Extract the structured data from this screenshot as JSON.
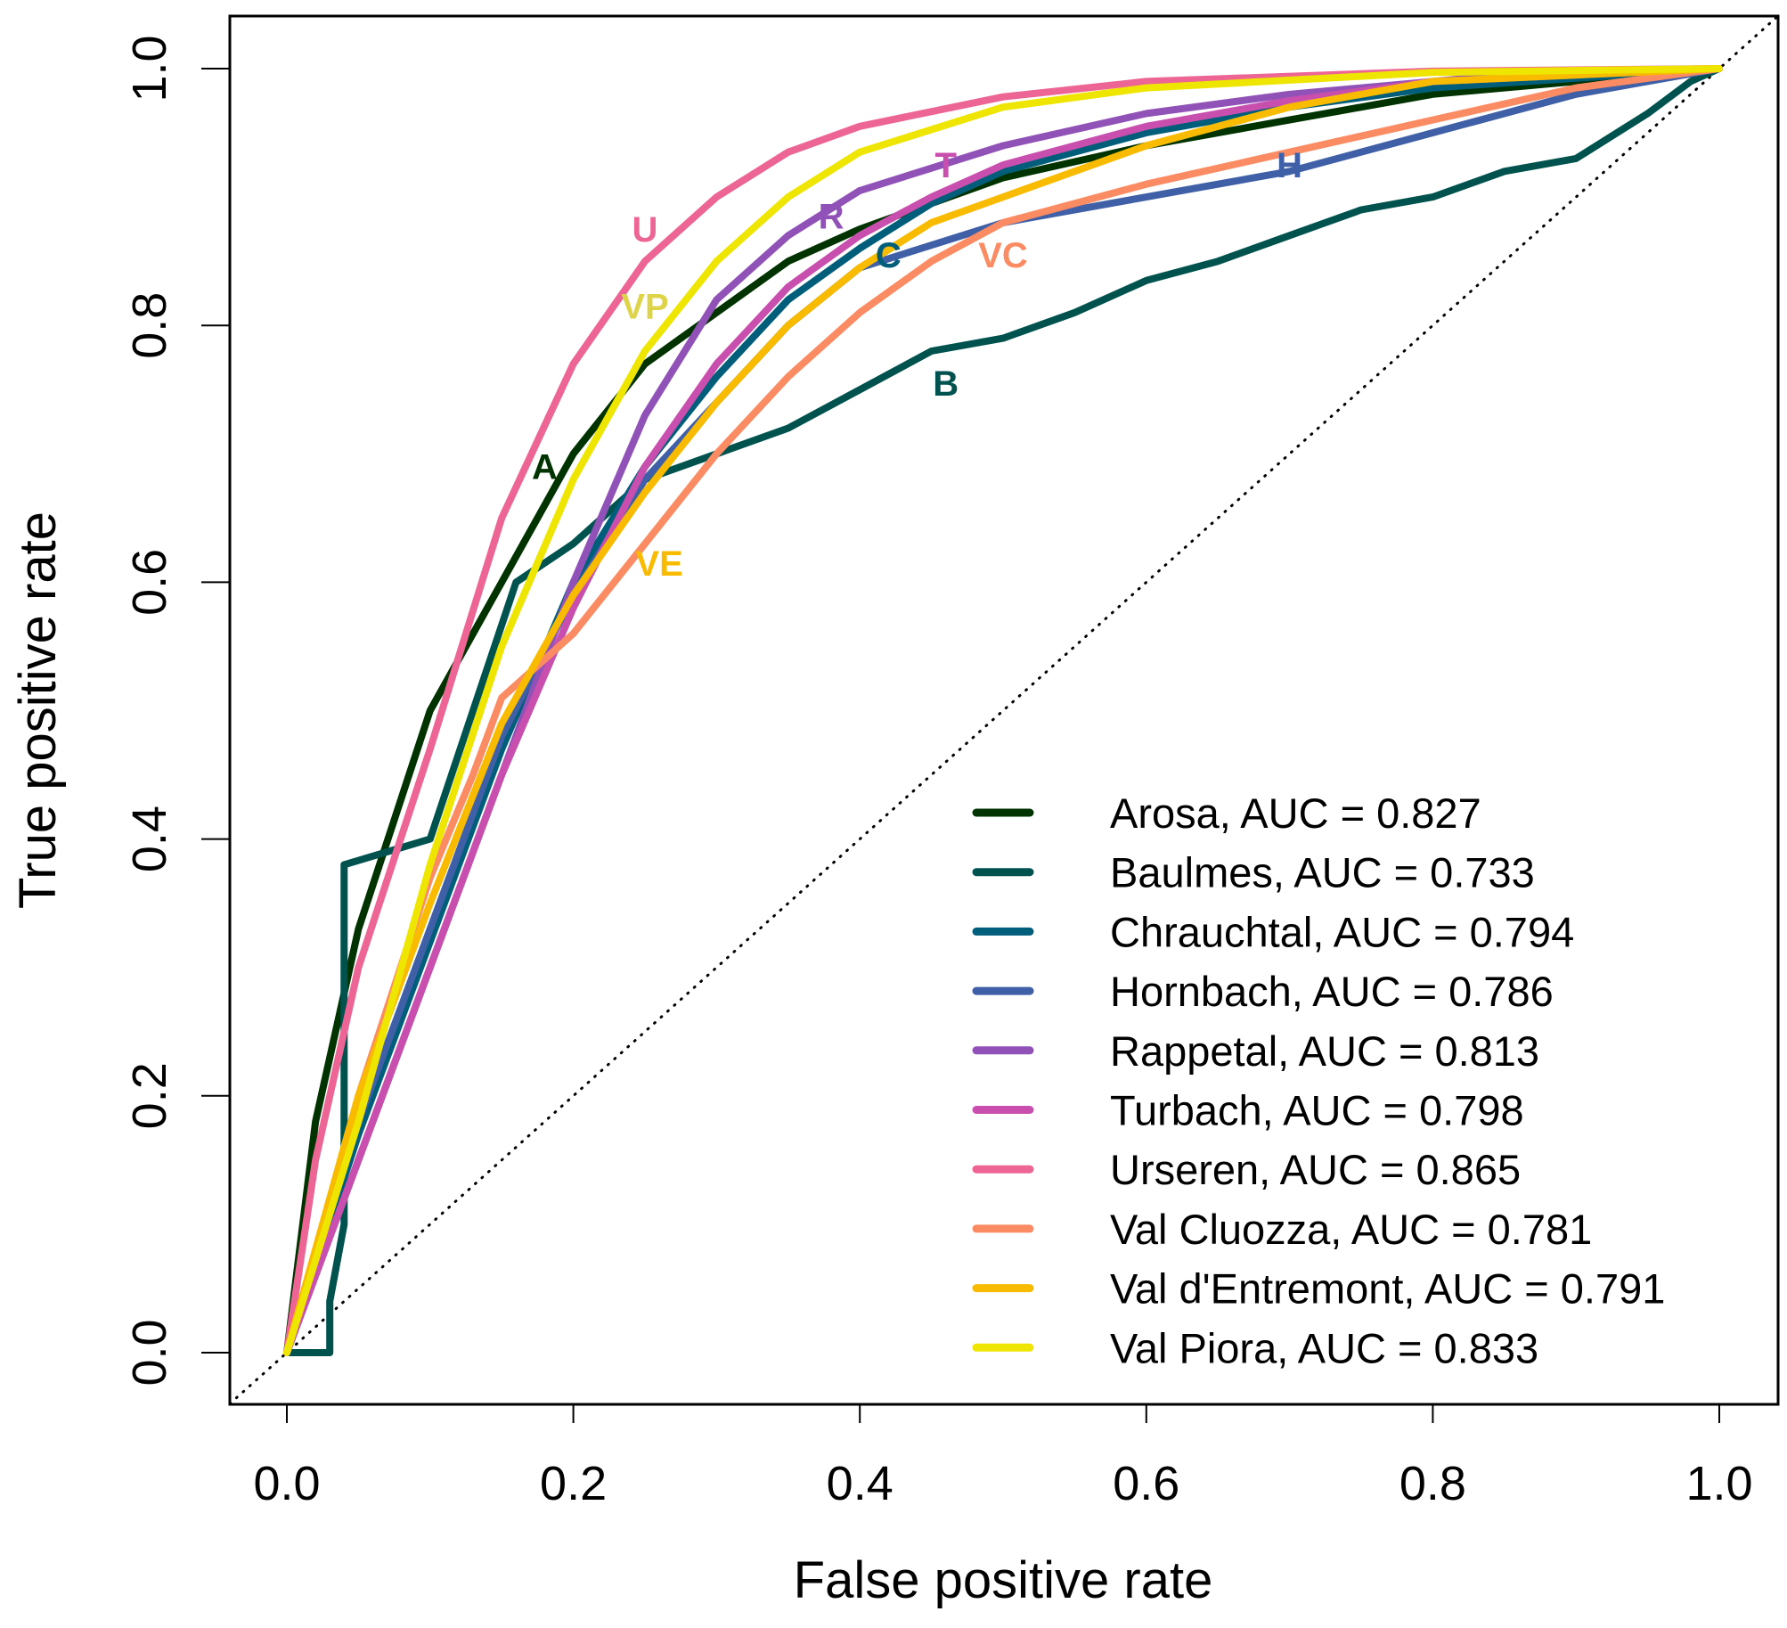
{
  "chart_data": {
    "type": "line",
    "title": "",
    "xlabel": "False positive rate",
    "ylabel": "True positive rate",
    "xlim": [
      0,
      1
    ],
    "ylim": [
      0,
      1
    ],
    "xticks": [
      0.0,
      0.2,
      0.4,
      0.6,
      0.8,
      1.0
    ],
    "xtick_labels": [
      "0.0",
      "0.2",
      "0.4",
      "0.6",
      "0.8",
      "1.0"
    ],
    "yticks": [
      0.0,
      0.2,
      0.4,
      0.6,
      0.8,
      1.0
    ],
    "ytick_labels": [
      "0.0",
      "0.2",
      "0.4",
      "0.6",
      "0.8",
      "1.0"
    ],
    "grid": false,
    "legend_position": "bottom-right",
    "reference_line": {
      "name": "chance",
      "style": "dotted",
      "color": "#000000",
      "x": [
        0,
        1
      ],
      "y": [
        0,
        1
      ]
    },
    "series": [
      {
        "name": "Arosa",
        "legend": "Arosa, AUC = 0.827",
        "auc": 0.827,
        "abbr": "A",
        "color": "#003300",
        "label_at": [
          0.18,
          0.69
        ],
        "x": [
          0,
          0.02,
          0.05,
          0.1,
          0.15,
          0.2,
          0.25,
          0.3,
          0.35,
          0.4,
          0.5,
          0.6,
          0.7,
          0.8,
          0.9,
          1
        ],
        "y": [
          0,
          0.18,
          0.33,
          0.5,
          0.6,
          0.7,
          0.77,
          0.81,
          0.85,
          0.875,
          0.915,
          0.94,
          0.96,
          0.98,
          0.99,
          1
        ]
      },
      {
        "name": "Baulmes",
        "legend": "Baulmes, AUC = 0.733",
        "auc": 0.733,
        "abbr": "B",
        "color": "#00524F",
        "label_at": [
          0.46,
          0.755
        ],
        "step": true,
        "x": [
          0,
          0.03,
          0.03,
          0.04,
          0.04,
          0.1,
          0.13,
          0.16,
          0.2,
          0.25,
          0.3,
          0.35,
          0.4,
          0.45,
          0.5,
          0.55,
          0.6,
          0.65,
          0.7,
          0.75,
          0.8,
          0.85,
          0.9,
          0.95,
          0.98,
          1
        ],
        "y": [
          0,
          0,
          0.04,
          0.1,
          0.38,
          0.4,
          0.5,
          0.6,
          0.63,
          0.68,
          0.7,
          0.72,
          0.75,
          0.78,
          0.79,
          0.81,
          0.835,
          0.85,
          0.87,
          0.89,
          0.9,
          0.92,
          0.93,
          0.965,
          0.99,
          1
        ]
      },
      {
        "name": "Chrauchtal",
        "legend": "Chrauchtal, AUC = 0.794",
        "auc": 0.794,
        "abbr": "C",
        "color": "#005E7A",
        "label_at": [
          0.42,
          0.855
        ],
        "x": [
          0,
          0.05,
          0.1,
          0.15,
          0.2,
          0.25,
          0.3,
          0.35,
          0.4,
          0.45,
          0.5,
          0.6,
          0.7,
          0.8,
          1
        ],
        "y": [
          0,
          0.17,
          0.32,
          0.47,
          0.6,
          0.69,
          0.76,
          0.82,
          0.86,
          0.895,
          0.92,
          0.95,
          0.97,
          0.985,
          1
        ]
      },
      {
        "name": "Hornbach",
        "legend": "Hornbach, AUC = 0.786",
        "auc": 0.786,
        "abbr": "H",
        "color": "#3F5FA6",
        "label_at": [
          0.7,
          0.925
        ],
        "x": [
          0,
          0.05,
          0.1,
          0.15,
          0.2,
          0.25,
          0.3,
          0.35,
          0.4,
          0.5,
          0.6,
          0.7,
          0.8,
          0.9,
          1
        ],
        "y": [
          0,
          0.18,
          0.33,
          0.48,
          0.59,
          0.68,
          0.74,
          0.8,
          0.845,
          0.88,
          0.9,
          0.92,
          0.95,
          0.98,
          1
        ]
      },
      {
        "name": "Rappetal",
        "legend": "Rappetal, AUC = 0.813",
        "auc": 0.813,
        "abbr": "R",
        "color": "#9152B8",
        "label_at": [
          0.38,
          0.885
        ],
        "x": [
          0,
          0.05,
          0.1,
          0.15,
          0.2,
          0.25,
          0.3,
          0.35,
          0.4,
          0.5,
          0.6,
          0.7,
          0.85,
          1
        ],
        "y": [
          0,
          0.15,
          0.3,
          0.45,
          0.6,
          0.73,
          0.82,
          0.87,
          0.905,
          0.94,
          0.965,
          0.98,
          0.995,
          1
        ]
      },
      {
        "name": "Turbach",
        "legend": "Turbach, AUC = 0.798",
        "auc": 0.798,
        "abbr": "T",
        "color": "#C84FAE",
        "label_at": [
          0.46,
          0.925
        ],
        "x": [
          0,
          0.05,
          0.1,
          0.15,
          0.2,
          0.25,
          0.3,
          0.35,
          0.4,
          0.45,
          0.5,
          0.6,
          0.7,
          0.8,
          1
        ],
        "y": [
          0,
          0.15,
          0.3,
          0.45,
          0.58,
          0.69,
          0.77,
          0.83,
          0.87,
          0.9,
          0.925,
          0.955,
          0.975,
          0.99,
          1
        ]
      },
      {
        "name": "Urseren",
        "legend": "Urseren, AUC = 0.865",
        "auc": 0.865,
        "abbr": "U",
        "color": "#EC6594",
        "label_at": [
          0.25,
          0.875
        ],
        "x": [
          0,
          0.02,
          0.05,
          0.1,
          0.15,
          0.2,
          0.25,
          0.3,
          0.35,
          0.4,
          0.5,
          0.6,
          0.8,
          1
        ],
        "y": [
          0,
          0.15,
          0.3,
          0.47,
          0.65,
          0.77,
          0.85,
          0.9,
          0.935,
          0.955,
          0.978,
          0.99,
          0.998,
          1
        ]
      },
      {
        "name": "Val Cluozza",
        "legend": "Val Cluozza, AUC = 0.781",
        "auc": 0.781,
        "abbr": "VC",
        "color": "#FB8B62",
        "label_at": [
          0.5,
          0.855
        ],
        "x": [
          0,
          0.05,
          0.1,
          0.13,
          0.15,
          0.2,
          0.25,
          0.3,
          0.35,
          0.4,
          0.45,
          0.5,
          0.6,
          0.7,
          0.8,
          0.9,
          1
        ],
        "y": [
          0,
          0.2,
          0.37,
          0.45,
          0.51,
          0.56,
          0.63,
          0.7,
          0.76,
          0.81,
          0.85,
          0.88,
          0.91,
          0.935,
          0.96,
          0.985,
          1
        ]
      },
      {
        "name": "Val d'Entremont",
        "legend": "Val d'Entremont, AUC = 0.791",
        "auc": 0.791,
        "abbr": "VE",
        "color": "#F9BB00",
        "label_at": [
          0.26,
          0.615
        ],
        "x": [
          0,
          0.05,
          0.1,
          0.15,
          0.2,
          0.25,
          0.3,
          0.35,
          0.4,
          0.45,
          0.5,
          0.6,
          0.7,
          0.8,
          1
        ],
        "y": [
          0,
          0.2,
          0.35,
          0.49,
          0.59,
          0.67,
          0.74,
          0.8,
          0.845,
          0.88,
          0.9,
          0.94,
          0.97,
          0.99,
          1
        ]
      },
      {
        "name": "Val Piora",
        "legend": "Val Piora, AUC = 0.833",
        "auc": 0.833,
        "abbr": "VP",
        "color": "#EEE500",
        "label_color": "#DED44A",
        "label_at": [
          0.25,
          0.815
        ],
        "x": [
          0,
          0.05,
          0.1,
          0.15,
          0.2,
          0.25,
          0.3,
          0.35,
          0.4,
          0.5,
          0.6,
          0.8,
          1
        ],
        "y": [
          0,
          0.18,
          0.38,
          0.55,
          0.68,
          0.78,
          0.85,
          0.9,
          0.935,
          0.97,
          0.985,
          0.997,
          1
        ]
      }
    ]
  }
}
